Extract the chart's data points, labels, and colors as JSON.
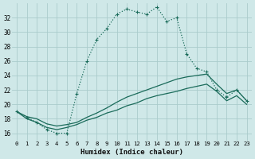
{
  "xlabel": "Humidex (Indice chaleur)",
  "bg_color": "#cfe8e8",
  "grid_color": "#aacccc",
  "line_color": "#1a6b5a",
  "xlim": [
    -0.5,
    23.5
  ],
  "ylim": [
    15,
    34
  ],
  "yticks": [
    16,
    18,
    20,
    22,
    24,
    26,
    28,
    30,
    32
  ],
  "xticks": [
    0,
    1,
    2,
    3,
    4,
    5,
    6,
    7,
    8,
    9,
    10,
    11,
    12,
    13,
    14,
    15,
    16,
    17,
    18,
    19,
    20,
    21,
    22,
    23
  ],
  "series1_x": [
    0,
    1,
    2,
    3,
    4,
    5,
    6,
    7,
    8,
    9,
    10,
    11,
    12,
    13,
    14,
    15,
    16,
    17,
    18,
    19,
    20,
    21,
    22,
    23
  ],
  "series1_y": [
    19.0,
    18.2,
    17.5,
    16.5,
    16.0,
    16.0,
    21.5,
    26.0,
    29.0,
    30.5,
    32.5,
    33.2,
    32.8,
    32.5,
    33.5,
    31.5,
    32.0,
    27.0,
    25.0,
    24.5,
    22.0,
    21.0,
    22.0,
    20.5
  ],
  "series2_x": [
    0,
    1,
    2,
    3,
    4,
    5,
    6,
    7,
    8,
    9,
    10,
    11,
    12,
    13,
    14,
    15,
    16,
    17,
    18,
    19,
    20,
    21,
    22,
    23
  ],
  "series2_y": [
    19.0,
    18.3,
    18.0,
    17.3,
    17.0,
    17.2,
    17.5,
    18.2,
    18.8,
    19.5,
    20.3,
    21.0,
    21.5,
    22.0,
    22.5,
    23.0,
    23.5,
    23.8,
    24.0,
    24.2,
    22.8,
    21.5,
    22.0,
    20.5
  ],
  "series3_x": [
    0,
    1,
    2,
    3,
    4,
    5,
    6,
    7,
    8,
    9,
    10,
    11,
    12,
    13,
    14,
    15,
    16,
    17,
    18,
    19,
    20,
    21,
    22,
    23
  ],
  "series3_y": [
    19.0,
    18.0,
    17.5,
    16.8,
    16.5,
    16.8,
    17.2,
    17.8,
    18.2,
    18.8,
    19.2,
    19.8,
    20.2,
    20.8,
    21.2,
    21.5,
    21.8,
    22.2,
    22.5,
    22.8,
    21.8,
    20.5,
    21.2,
    20.0
  ]
}
